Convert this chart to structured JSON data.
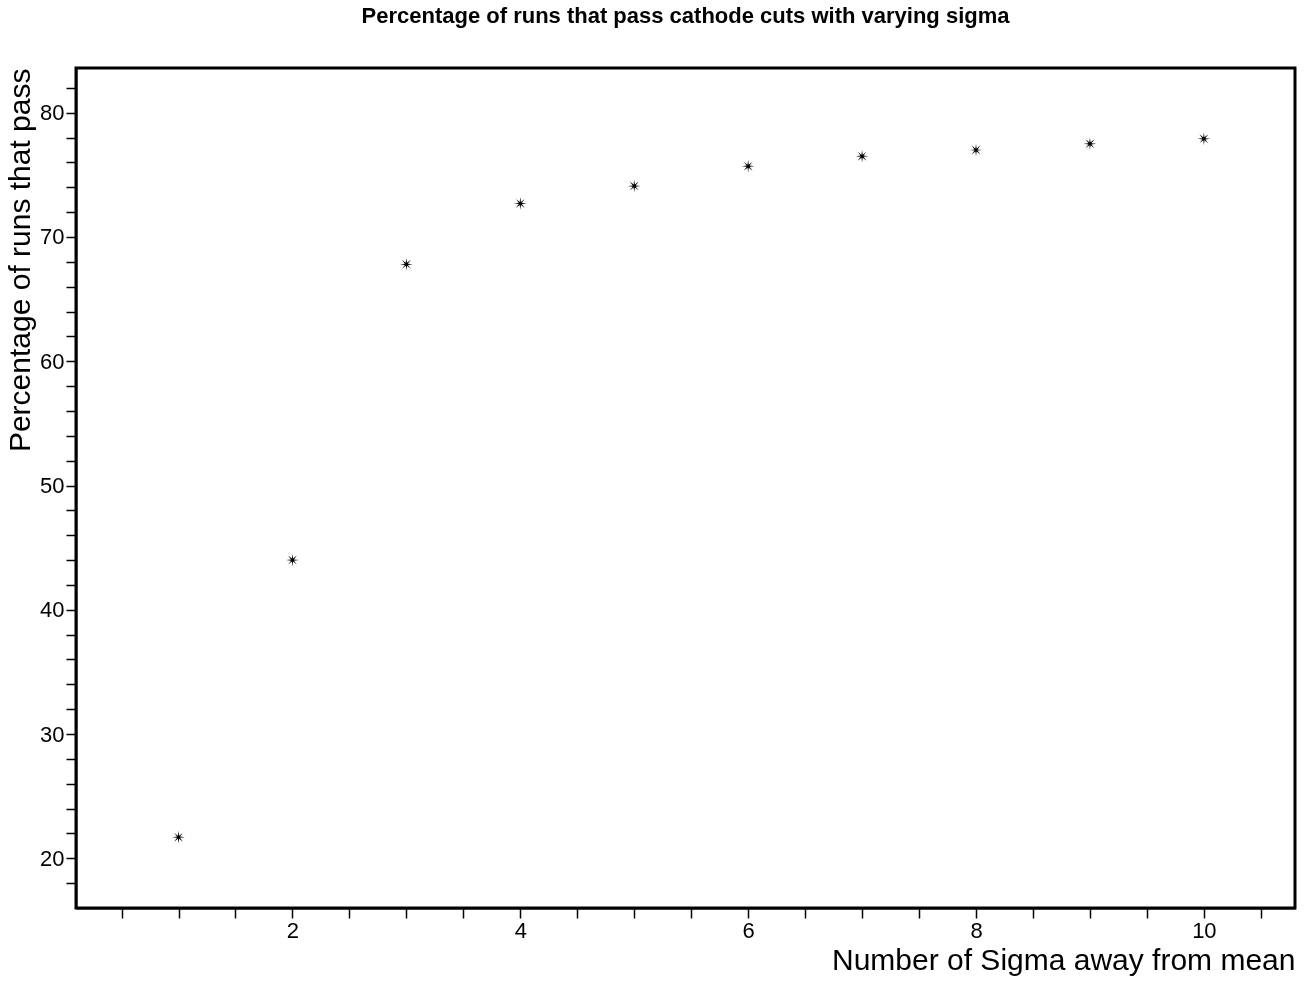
{
  "chart_data": {
    "type": "scatter",
    "title": "Percentage of runs that pass cathode cuts with varying sigma",
    "xlabel": "Number of Sigma away from mean",
    "ylabel": "Percentage of runs that pass",
    "x": [
      1,
      2,
      3,
      4,
      5,
      6,
      7,
      8,
      9,
      10
    ],
    "series": [
      {
        "color": "#000000",
        "values": [
          21.7,
          44.0,
          67.8,
          72.7,
          74.1,
          75.7,
          76.5,
          77.0,
          77.5,
          77.9
        ]
      }
    ],
    "marker": "star",
    "grid": false,
    "legend": false,
    "xlim": [
      0.1,
      10.8
    ],
    "ylim": [
      16,
      83.6
    ],
    "xticks": [
      {
        "value": 0.5,
        "label": null
      },
      {
        "value": 1,
        "label": null
      },
      {
        "value": 1.5,
        "label": null
      },
      2,
      {
        "value": 2.5,
        "label": null
      },
      {
        "value": 3,
        "label": null
      },
      {
        "value": 3.5,
        "label": null
      },
      4,
      {
        "value": 4.5,
        "label": null
      },
      {
        "value": 5,
        "label": null
      },
      {
        "value": 5.5,
        "label": null
      },
      6,
      {
        "value": 6.5,
        "label": null
      },
      {
        "value": 7,
        "label": null
      },
      {
        "value": 7.5,
        "label": null
      },
      8,
      {
        "value": 8.5,
        "label": null
      },
      {
        "value": 9,
        "label": null
      },
      {
        "value": 9.5,
        "label": null
      },
      10,
      {
        "value": 10.5,
        "label": null
      }
    ],
    "yticks": [
      {
        "value": 18,
        "label": null
      },
      20,
      {
        "value": 22,
        "label": null
      },
      {
        "value": 24,
        "label": null
      },
      {
        "value": 26,
        "label": null
      },
      {
        "value": 28,
        "label": null
      },
      30,
      {
        "value": 32,
        "label": null
      },
      {
        "value": 34,
        "label": null
      },
      {
        "value": 36,
        "label": null
      },
      {
        "value": 38,
        "label": null
      },
      40,
      {
        "value": 42,
        "label": null
      },
      {
        "value": 44,
        "label": null
      },
      {
        "value": 46,
        "label": null
      },
      {
        "value": 48,
        "label": null
      },
      50,
      {
        "value": 52,
        "label": null
      },
      {
        "value": 54,
        "label": null
      },
      {
        "value": 56,
        "label": null
      },
      {
        "value": 58,
        "label": null
      },
      60,
      {
        "value": 62,
        "label": null
      },
      {
        "value": 64,
        "label": null
      },
      {
        "value": 66,
        "label": null
      },
      {
        "value": 68,
        "label": null
      },
      70,
      {
        "value": 72,
        "label": null
      },
      {
        "value": 74,
        "label": null
      },
      {
        "value": 76,
        "label": null
      },
      {
        "value": 78,
        "label": null
      },
      80,
      {
        "value": 82,
        "label": null
      }
    ]
  }
}
